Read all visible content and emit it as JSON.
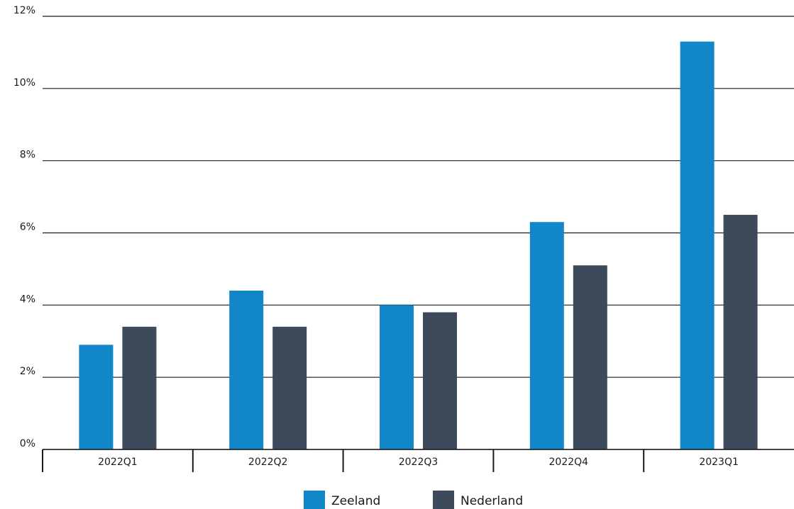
{
  "chart_data": {
    "type": "bar",
    "title": "",
    "xlabel": "",
    "ylabel": "",
    "categories": [
      "2022Q1",
      "2022Q2",
      "2022Q3",
      "2022Q4",
      "2023Q1"
    ],
    "series": [
      {
        "name": "Zeeland",
        "color": "#1186c8",
        "values": [
          2.9,
          4.4,
          4.0,
          6.3,
          11.3
        ]
      },
      {
        "name": "Nederland",
        "color": "#3d4a5c",
        "values": [
          3.4,
          3.4,
          3.8,
          5.1,
          6.5
        ]
      }
    ],
    "ylim": [
      0,
      12
    ],
    "yticks": [
      0,
      2,
      4,
      6,
      8,
      10,
      12
    ],
    "ytick_labels": [
      "0%",
      "2%",
      "4%",
      "6%",
      "8%",
      "10%",
      "12%"
    ],
    "grid": true,
    "legend_position": "bottom-center"
  }
}
